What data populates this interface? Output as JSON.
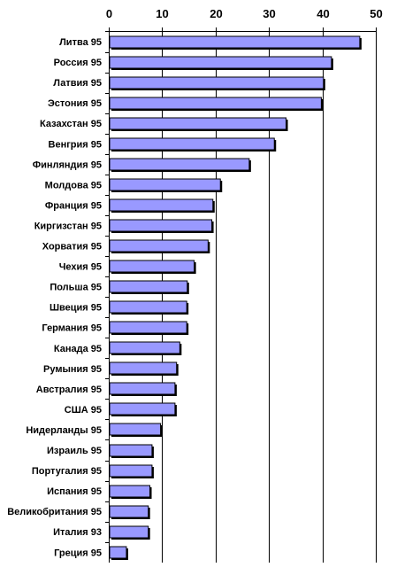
{
  "chart_data": {
    "type": "bar",
    "orientation": "horizontal",
    "categories": [
      "Литва 95",
      "Россия 95",
      "Латвия 95",
      "Эстония 95",
      "Казахстан 95",
      "Венгрия 95",
      "Финляндия 95",
      "Молдова 95",
      "Франция 95",
      "Киргизстан 95",
      "Хорватия 95",
      "Чехия 95",
      "Польша 95",
      "Швеция 95",
      "Германия 95",
      "Канада 95",
      "Румыния 95",
      "Австралия 95",
      "США 95",
      "Нидерланды 95",
      "Израиль 95",
      "Португалия 95",
      "Испания 95",
      "Великобритания 95",
      "Италия 93",
      "Греция 95"
    ],
    "values": [
      47,
      41.7,
      40.2,
      39.8,
      33.2,
      31,
      26.3,
      20.9,
      19.5,
      19.3,
      18.6,
      16,
      14.7,
      14.6,
      14.6,
      13.3,
      12.7,
      12.4,
      12.4,
      9.7,
      8.1,
      8.1,
      7.7,
      7.4,
      7.4,
      3.3
    ],
    "xaxis_position": "top",
    "xlim": [
      0,
      50
    ],
    "xticks": [
      0,
      10,
      20,
      30,
      40,
      50
    ],
    "grid": "vertical",
    "legend": "none",
    "bar_color": "#9999ff",
    "shadow_color": "#000000",
    "title": "",
    "xlabel": "",
    "ylabel": ""
  }
}
